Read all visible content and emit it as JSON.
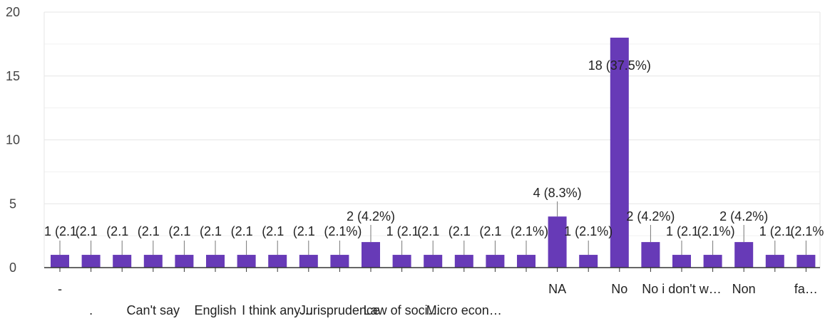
{
  "chart_data": {
    "type": "bar",
    "categories": [
      "-",
      ".",
      "",
      "Can't say",
      "",
      "English",
      "",
      "I think any…",
      "",
      "Jurisprudence",
      "",
      "Law of soci…",
      "",
      "Micro econ…",
      "",
      "",
      "NA",
      "",
      "No",
      "",
      "No i don't w…",
      "",
      "Non",
      "",
      "fa…"
    ],
    "values": [
      1,
      1,
      1,
      1,
      1,
      1,
      1,
      1,
      1,
      1,
      2,
      1,
      1,
      1,
      1,
      1,
      4,
      1,
      18,
      2,
      1,
      1,
      2,
      1,
      1
    ],
    "data_labels": [
      "1 (2.1",
      "(2.1",
      "(2.1",
      "(2.1",
      "(2.1",
      "(2.1",
      "(2.1",
      "(2.1",
      "(2.1",
      "(2.1%)",
      "2 (4.2%)",
      "1 (2.1",
      "(2.1",
      "(2.1",
      "(2.1",
      "(2.1%)",
      "4 (8.3%)",
      "1 (2.1%)",
      "18 (37.5%)",
      "2 (4.2%)",
      "1 (2.1",
      "(2.1%)",
      "2 (4.2%)",
      "1 (2.1",
      "(2.1%"
    ],
    "ylim": [
      0,
      20
    ],
    "yticks": [
      "0",
      "5",
      "10",
      "15",
      "20"
    ],
    "grid": true,
    "colors": {
      "bar": "#673ab7",
      "grid": "#e6e6e6",
      "axis": "#333333"
    }
  }
}
